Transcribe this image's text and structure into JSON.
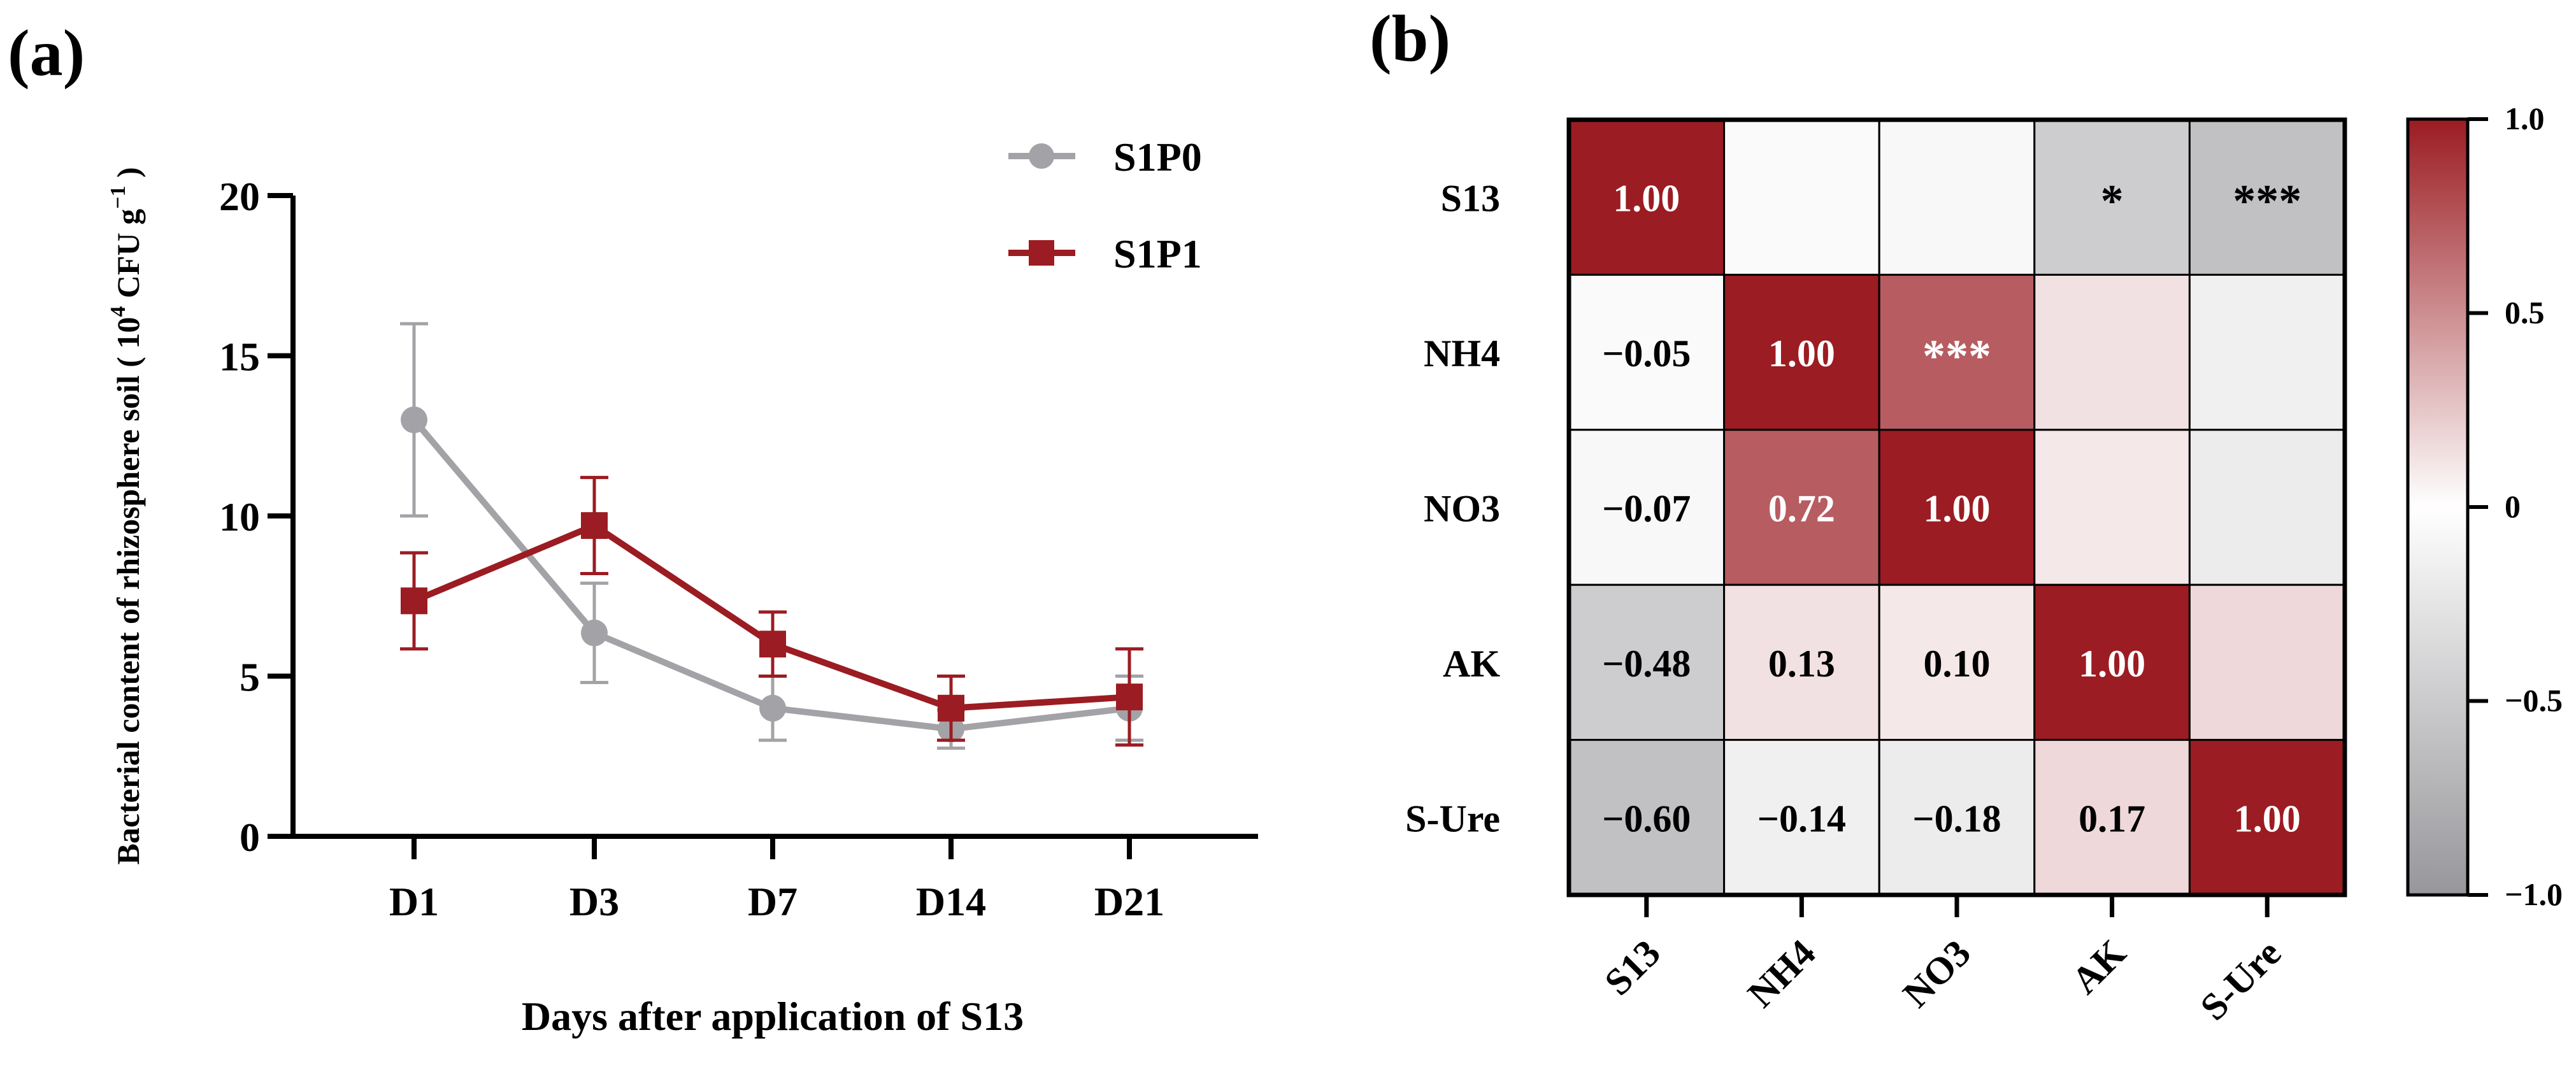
{
  "panels": {
    "a_label": "(a)",
    "b_label": "(b)"
  },
  "chart_data": [
    {
      "type": "line",
      "panel": "(a)",
      "title": "",
      "xlabel": "Days after application of S13",
      "ylabel_main": "Bacterial content of rhizosphere soil ( 10",
      "ylabel_exp1": "4",
      "ylabel_mid": " CFU g",
      "ylabel_exp2": "−1",
      "ylabel_end": " )",
      "categories": [
        "D1",
        "D3",
        "D7",
        "D14",
        "D21"
      ],
      "ylim": [
        0,
        20
      ],
      "yticks": [
        0,
        5,
        10,
        15,
        20
      ],
      "grid": false,
      "legend_position": "top-right",
      "series": [
        {
          "name": "S1P0",
          "marker": "circle",
          "color": "#a3a3a7",
          "values": [
            13.0,
            6.35,
            4.0,
            3.35,
            4.0
          ],
          "errors": [
            3.0,
            1.55,
            1.0,
            0.6,
            1.0
          ]
        },
        {
          "name": "S1P1",
          "marker": "square",
          "color": "#9b1c22",
          "values": [
            7.35,
            9.7,
            6.0,
            4.0,
            4.35
          ],
          "errors": [
            1.5,
            1.5,
            1.0,
            1.0,
            1.5
          ]
        }
      ]
    },
    {
      "type": "heatmap",
      "panel": "(b)",
      "rows": [
        "S13",
        "NH4",
        "NO3",
        "AK",
        "S-Ure"
      ],
      "cols": [
        "S13",
        "NH4",
        "NO3",
        "AK",
        "S-Ure"
      ],
      "matrix": [
        [
          1.0,
          -0.05,
          -0.07,
          -0.48,
          -0.6
        ],
        [
          -0.05,
          1.0,
          0.72,
          0.13,
          -0.14
        ],
        [
          -0.07,
          0.72,
          1.0,
          0.1,
          -0.18
        ],
        [
          -0.48,
          0.13,
          0.1,
          1.0,
          0.17
        ],
        [
          -0.6,
          -0.14,
          -0.18,
          0.17,
          1.0
        ]
      ],
      "cell_labels": [
        [
          "1.00",
          "",
          "",
          "*",
          "***"
        ],
        [
          "−0.05",
          "1.00",
          "***",
          "",
          ""
        ],
        [
          "−0.07",
          "0.72",
          "1.00",
          "",
          ""
        ],
        [
          "−0.48",
          "0.13",
          "0.10",
          "1.00",
          ""
        ],
        [
          "−0.60",
          "−0.14",
          "−0.18",
          "0.17",
          "1.00"
        ]
      ],
      "colorbar": {
        "range": [
          -1.0,
          1.0
        ],
        "ticks": [
          1.0,
          0.5,
          0,
          -0.5,
          -1.0
        ],
        "tick_labels": [
          "1.0",
          "0.5",
          "0",
          "−0.5",
          "−1.0"
        ],
        "high_color": "#9b1c22",
        "mid_color": "#ffffff",
        "low_color": "#97979b"
      }
    }
  ]
}
